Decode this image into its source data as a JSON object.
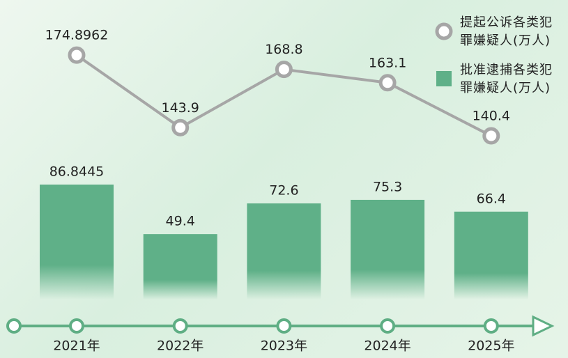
{
  "chart_data": {
    "type": "combo",
    "categories": [
      "2021年",
      "2022年",
      "2023年",
      "2024年",
      "2025年"
    ],
    "series": [
      {
        "name": "提起公诉各类犯罪嫌疑人(万人)",
        "type": "line",
        "axis": "y2",
        "color": "#a6a6a6",
        "values": [
          174.8962,
          143.9,
          168.8,
          163.1,
          140.4
        ]
      },
      {
        "name": "批准逮捕各类犯罪嫌疑人(万人)",
        "type": "bar",
        "color": "#5fb088",
        "values": [
          86.8445,
          49.4,
          72.6,
          75.3,
          66.4
        ]
      }
    ],
    "ylim": [
      0,
      100
    ],
    "y2lim": [
      130,
      180
    ]
  }
}
